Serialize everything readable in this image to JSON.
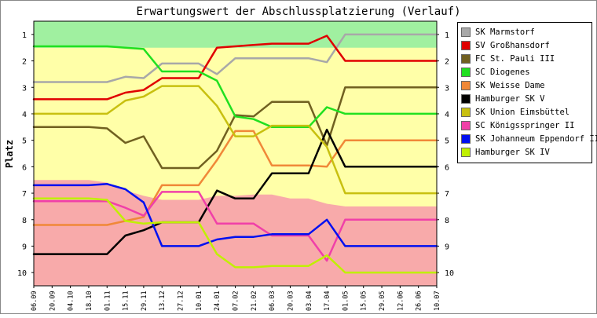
{
  "chart_data": {
    "type": "line",
    "title": "Erwartungswert der Abschlussplatzierung (Verlauf)",
    "ylabel": "Platz",
    "xlabel": "",
    "ylim": [
      10.5,
      0.5
    ],
    "y_ticks": [
      1,
      2,
      3,
      4,
      5,
      6,
      7,
      8,
      9,
      10
    ],
    "x": [
      "06.09",
      "20.09",
      "04.10",
      "18.10",
      "01.11",
      "15.11",
      "29.11",
      "13.12",
      "27.12",
      "10.01",
      "24.01",
      "07.02",
      "21.02",
      "06.03",
      "20.03",
      "03.04",
      "17.04",
      "01.05",
      "15.05",
      "29.05",
      "12.06",
      "26.06",
      "10.07"
    ],
    "bands": [
      {
        "name": "green",
        "color": "#a0f0a0"
      },
      {
        "name": "yellow",
        "color": "#ffffa8"
      },
      {
        "name": "red",
        "color": "#f8aaaa"
      }
    ],
    "green_band_bottom": [
      1.5,
      1.5,
      1.5,
      1.5,
      1.5,
      1.5,
      1.5,
      1.5,
      1.5,
      1.5,
      1.5,
      1.5,
      1.5,
      1.5,
      1.5,
      1.5,
      1.5,
      1.5,
      1.5,
      1.5,
      1.5,
      1.5,
      1.5
    ],
    "red_band_top": [
      6.5,
      6.5,
      6.5,
      6.5,
      6.6,
      6.9,
      7.1,
      7.25,
      7.25,
      7.25,
      7.1,
      7.1,
      7.05,
      7.05,
      7.2,
      7.2,
      7.4,
      7.5,
      7.5,
      7.5,
      7.5,
      7.5,
      7.5
    ],
    "series": [
      {
        "name": "SK Marmstorf",
        "color": "#a8a8a8",
        "values": [
          2.8,
          2.8,
          2.8,
          2.8,
          2.8,
          2.6,
          2.65,
          2.1,
          2.1,
          2.1,
          2.5,
          1.9,
          1.9,
          1.9,
          1.9,
          1.9,
          2.05,
          1.0,
          1.0,
          1.0,
          1.0,
          1.0,
          1.0
        ]
      },
      {
        "name": "SV Großhansdorf",
        "color": "#e00000",
        "values": [
          3.45,
          3.45,
          3.45,
          3.45,
          3.45,
          3.2,
          3.1,
          2.65,
          2.65,
          2.65,
          1.5,
          1.45,
          1.4,
          1.35,
          1.35,
          1.35,
          1.05,
          2.0,
          2.0,
          2.0,
          2.0,
          2.0,
          2.0
        ]
      },
      {
        "name": "FC St. Pauli III",
        "color": "#706020",
        "values": [
          4.5,
          4.5,
          4.5,
          4.5,
          4.55,
          5.1,
          4.85,
          6.05,
          6.05,
          6.05,
          5.4,
          4.05,
          4.1,
          3.55,
          3.55,
          3.55,
          5.2,
          3.0,
          3.0,
          3.0,
          3.0,
          3.0,
          3.0
        ]
      },
      {
        "name": "SC Diogenes",
        "color": "#20e020",
        "values": [
          1.45,
          1.45,
          1.45,
          1.45,
          1.45,
          1.5,
          1.55,
          2.4,
          2.4,
          2.4,
          2.75,
          4.1,
          4.2,
          4.5,
          4.5,
          4.5,
          3.75,
          4.0,
          4.0,
          4.0,
          4.0,
          4.0,
          4.0
        ]
      },
      {
        "name": "SK Weisse Dame",
        "color": "#f08838",
        "values": [
          8.2,
          8.2,
          8.2,
          8.2,
          8.2,
          8.05,
          7.9,
          6.7,
          6.7,
          6.7,
          5.75,
          4.65,
          4.65,
          5.95,
          5.95,
          5.95,
          6.0,
          5.0,
          5.0,
          5.0,
          5.0,
          5.0,
          5.0
        ]
      },
      {
        "name": "Hamburger SK V",
        "color": "#000000",
        "values": [
          9.3,
          9.3,
          9.3,
          9.3,
          9.3,
          8.6,
          8.4,
          8.1,
          8.1,
          8.1,
          6.9,
          7.2,
          7.2,
          6.25,
          6.25,
          6.25,
          4.6,
          6.0,
          6.0,
          6.0,
          6.0,
          6.0,
          6.0
        ]
      },
      {
        "name": "SK Union Eimsbüttel",
        "color": "#c8c010",
        "values": [
          4.0,
          4.0,
          4.0,
          4.0,
          4.0,
          3.5,
          3.35,
          2.95,
          2.95,
          2.95,
          3.7,
          4.85,
          4.85,
          4.45,
          4.45,
          4.45,
          5.25,
          7.0,
          7.0,
          7.0,
          7.0,
          7.0,
          7.0
        ]
      },
      {
        "name": "SC Königsspringer II",
        "color": "#f040a8",
        "values": [
          7.3,
          7.3,
          7.3,
          7.3,
          7.3,
          7.55,
          7.85,
          6.95,
          6.95,
          6.95,
          8.15,
          8.15,
          8.15,
          8.6,
          8.6,
          8.6,
          9.55,
          8.0,
          8.0,
          8.0,
          8.0,
          8.0,
          8.0
        ]
      },
      {
        "name": "SK Johanneum Eppendorf II",
        "color": "#0010f0",
        "values": [
          6.7,
          6.7,
          6.7,
          6.7,
          6.65,
          6.85,
          7.35,
          9.0,
          9.0,
          9.0,
          8.75,
          8.65,
          8.65,
          8.55,
          8.55,
          8.55,
          8.0,
          9.0,
          9.0,
          9.0,
          9.0,
          9.0,
          9.0
        ]
      },
      {
        "name": "Hamburger SK IV",
        "color": "#c0f000",
        "values": [
          7.2,
          7.2,
          7.2,
          7.2,
          7.25,
          8.05,
          8.15,
          8.1,
          8.1,
          8.1,
          9.3,
          9.8,
          9.8,
          9.75,
          9.75,
          9.75,
          9.35,
          10.0,
          10.0,
          10.0,
          10.0,
          10.0,
          10.0
        ]
      }
    ]
  }
}
